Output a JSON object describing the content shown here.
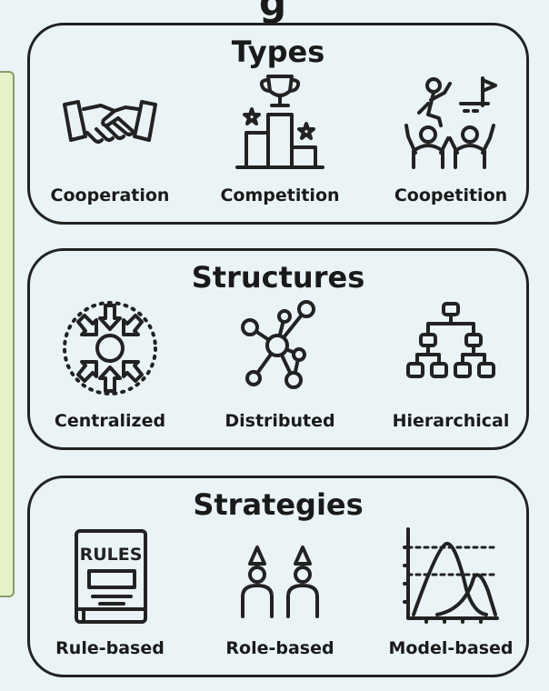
{
  "heading_fragment": "g",
  "panels": {
    "types": {
      "title": "Types",
      "items": [
        {
          "label": "Cooperation",
          "icon": "handshake-icon"
        },
        {
          "label": "Competition",
          "icon": "podium-trophy-icon"
        },
        {
          "label": "Coopetition",
          "icon": "team-climb-flag-icon"
        }
      ]
    },
    "structures": {
      "title": "Structures",
      "items": [
        {
          "label": "Centralized",
          "icon": "centralized-arrows-icon"
        },
        {
          "label": "Distributed",
          "icon": "distributed-network-icon"
        },
        {
          "label": "Hierarchical",
          "icon": "hierarchy-tree-icon"
        }
      ]
    },
    "strategies": {
      "title": "Strategies",
      "items": [
        {
          "label": "Rule-based",
          "icon": "rules-book-icon",
          "icon_text": "RULES"
        },
        {
          "label": "Role-based",
          "icon": "role-people-icon"
        },
        {
          "label": "Model-based",
          "icon": "distribution-curves-icon"
        }
      ]
    }
  },
  "colors": {
    "background": "#eaf4f6",
    "stroke": "#222222",
    "side_panel": "#e6f3c8"
  }
}
